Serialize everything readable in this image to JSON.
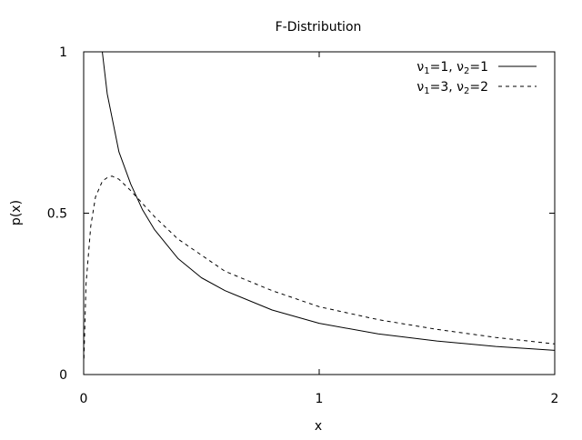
{
  "chart_data": {
    "type": "line",
    "title": "F-Distribution",
    "xlabel": "x",
    "ylabel": "p(x)",
    "xlim": [
      0,
      2
    ],
    "ylim": [
      0,
      1
    ],
    "x_ticks": [
      {
        "value": 0,
        "label": "0"
      },
      {
        "value": 1,
        "label": "1"
      },
      {
        "value": 2,
        "label": "2"
      }
    ],
    "y_ticks": [
      {
        "value": 0,
        "label": "0"
      },
      {
        "value": 0.5,
        "label": "0.5"
      },
      {
        "value": 1,
        "label": "1"
      }
    ],
    "grid": false,
    "legend_position": "top-right",
    "series": [
      {
        "name": "ν1=1, ν2=1",
        "legend": {
          "sym": "ν",
          "sub1": "1",
          "mid": "=1, ",
          "sub2": "2",
          "tail": "=1"
        },
        "line_style": "solid",
        "color": "#000000",
        "x": [
          0.079,
          0.1,
          0.15,
          0.2,
          0.25,
          0.3,
          0.4,
          0.5,
          0.6,
          0.8,
          1.0,
          1.25,
          1.5,
          1.75,
          2.0
        ],
        "y": [
          1.0,
          0.87,
          0.69,
          0.59,
          0.51,
          0.45,
          0.36,
          0.3,
          0.26,
          0.2,
          0.159,
          0.126,
          0.104,
          0.087,
          0.075
        ]
      },
      {
        "name": "ν1=3, ν2=2",
        "legend": {
          "sym": "ν",
          "sub1": "1",
          "mid": "=3, ",
          "sub2": "2",
          "tail": "=2"
        },
        "line_style": "dashed",
        "color": "#000000",
        "x": [
          0.001,
          0.01,
          0.03,
          0.05,
          0.08,
          0.1,
          0.12,
          0.15,
          0.2,
          0.3,
          0.4,
          0.5,
          0.6,
          0.8,
          1.0,
          1.25,
          1.5,
          1.75,
          2.0
        ],
        "y": [
          0.05,
          0.28,
          0.46,
          0.55,
          0.6,
          0.61,
          0.615,
          0.605,
          0.57,
          0.49,
          0.42,
          0.37,
          0.32,
          0.26,
          0.21,
          0.17,
          0.14,
          0.115,
          0.095
        ]
      }
    ]
  }
}
